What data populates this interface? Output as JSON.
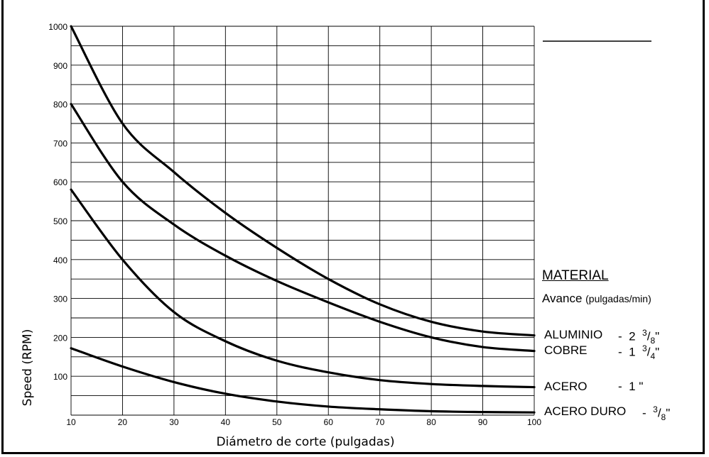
{
  "chart_data": {
    "type": "line",
    "xlabel": "Diámetro de corte (pulgadas)",
    "ylabel": "Speed (RPM)",
    "xlim": [
      10,
      100
    ],
    "ylim": [
      0,
      1000
    ],
    "x_ticks": [
      10,
      20,
      30,
      40,
      50,
      60,
      70,
      80,
      90,
      100
    ],
    "y_ticks": [
      100,
      200,
      300,
      400,
      500,
      600,
      700,
      800,
      900,
      1000
    ],
    "grid": true,
    "series": [
      {
        "name": "ALUMINIO",
        "rate": "2 ³/₈\"",
        "x": [
          10,
          20,
          30,
          40,
          50,
          60,
          70,
          80,
          90,
          100
        ],
        "y": [
          1000,
          750,
          625,
          520,
          430,
          350,
          285,
          240,
          215,
          205
        ]
      },
      {
        "name": "COBRE",
        "rate": "1 ³/₄\"",
        "x": [
          10,
          20,
          30,
          40,
          50,
          60,
          70,
          80,
          90,
          100
        ],
        "y": [
          800,
          600,
          490,
          410,
          345,
          290,
          240,
          200,
          175,
          165
        ]
      },
      {
        "name": "ACERO",
        "rate": "1 \"",
        "x": [
          10,
          20,
          30,
          40,
          50,
          60,
          70,
          80,
          90,
          100
        ],
        "y": [
          580,
          400,
          265,
          190,
          140,
          110,
          90,
          80,
          75,
          72
        ]
      },
      {
        "name": "ACERO DURO",
        "rate": "³/₈\"",
        "x": [
          10,
          20,
          30,
          40,
          50,
          60,
          70,
          80,
          90,
          100
        ],
        "y": [
          172,
          125,
          85,
          55,
          35,
          22,
          15,
          10,
          8,
          7
        ]
      }
    ]
  },
  "legend": {
    "title": "MATERIAL",
    "subtitle_main": "Avance",
    "subtitle_small": "(pulgadas/min)",
    "entries": [
      {
        "material": "ALUMINIO",
        "dash": "-",
        "whole": "2",
        "num": "3",
        "den": "8",
        "unit": "\""
      },
      {
        "material": "COBRE",
        "dash": "-",
        "whole": "1",
        "num": "3",
        "den": "4",
        "unit": "\""
      },
      {
        "material": "ACERO",
        "dash": "-",
        "whole": "1",
        "num": "",
        "den": "",
        "unit": "\""
      },
      {
        "material": "ACERO DURO",
        "dash": "-",
        "whole": "",
        "num": "3",
        "den": "8",
        "unit": "\""
      }
    ]
  },
  "colors": {
    "line": "#000000",
    "grid": "#000000",
    "background": "#ffffff"
  }
}
